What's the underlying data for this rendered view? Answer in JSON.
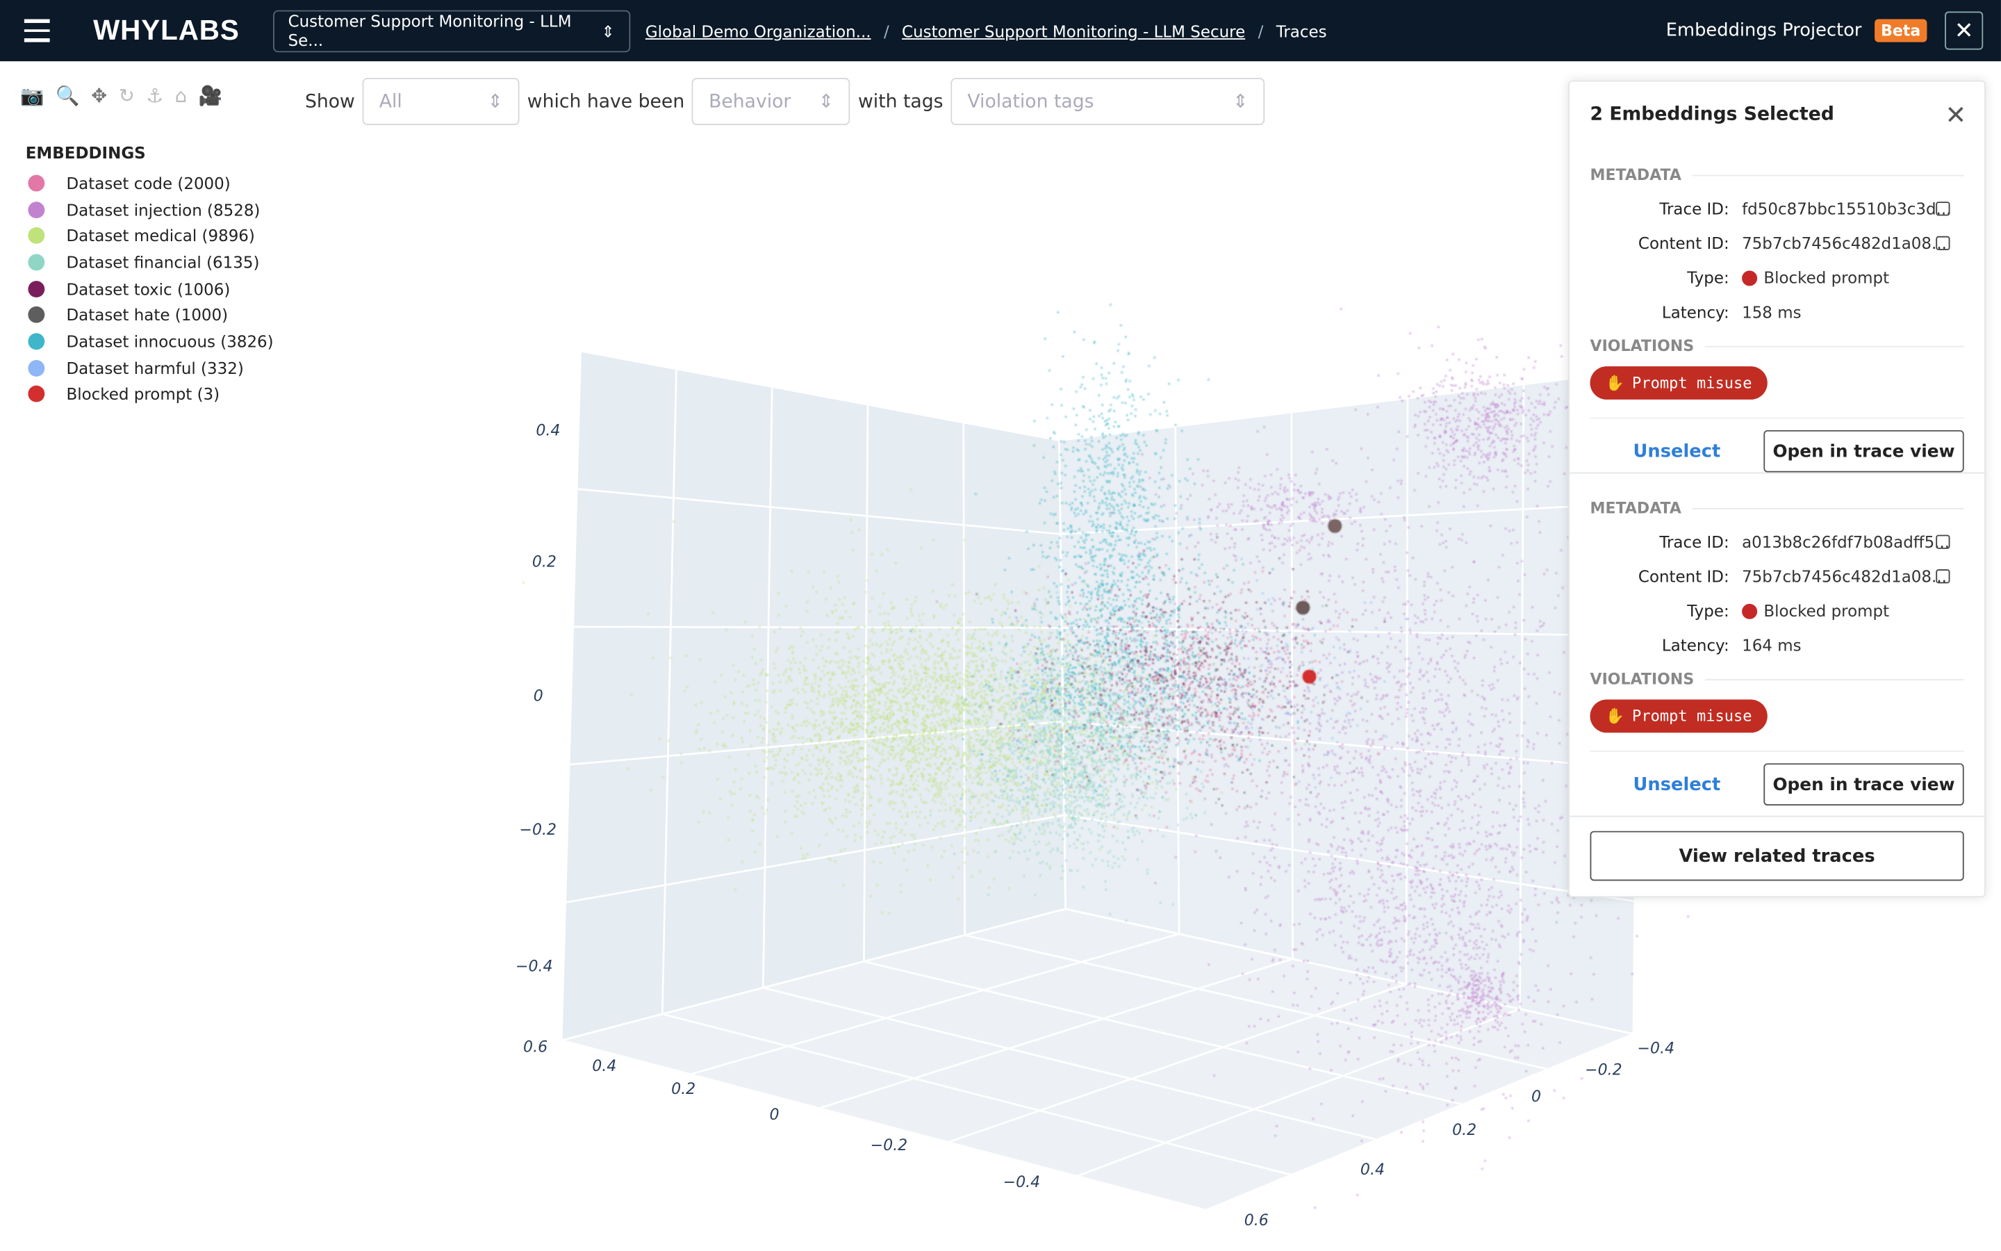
{
  "topbar": {
    "logo": "WHYLABS",
    "model_select": "Customer Support Monitoring - LLM Se...",
    "breadcrumbs": [
      "Global Demo Organization...",
      "Customer Support Monitoring - LLM Secure",
      "Traces"
    ],
    "title": "Embeddings Projector",
    "badge": "Beta"
  },
  "toolbar": {
    "icons": [
      "camera-icon",
      "zoom-icon",
      "pan-icon",
      "orbit-icon",
      "turntable-icon",
      "home-icon",
      "video-camera-icon"
    ]
  },
  "filters": {
    "show_label": "Show",
    "show_value": "All",
    "behavior_label": "which have been",
    "behavior_placeholder": "Behavior",
    "tags_label": "with tags",
    "tags_placeholder": "Violation tags"
  },
  "legend": {
    "title": "EMBEDDINGS",
    "items": [
      {
        "label": "Dataset code (2000)",
        "color": "#e377a5"
      },
      {
        "label": "Dataset injection (8528)",
        "color": "#c182d0"
      },
      {
        "label": "Dataset medical (9896)",
        "color": "#bfe27a"
      },
      {
        "label": "Dataset financial (6135)",
        "color": "#8fd6c6"
      },
      {
        "label": "Dataset toxic (1006)",
        "color": "#7a1f5c"
      },
      {
        "label": "Dataset hate (1000)",
        "color": "#5e5e5e"
      },
      {
        "label": "Dataset innocuous (3826)",
        "color": "#3fb6c9"
      },
      {
        "label": "Dataset harmful (332)",
        "color": "#8fb6f5"
      },
      {
        "label": "Blocked prompt (3)",
        "color": "#d32f2f"
      }
    ]
  },
  "chart_data": {
    "type": "scatter",
    "dimensions": 3,
    "z_ticks": [
      "0.4",
      "0.2",
      "0",
      "−0.2",
      "−0.4"
    ],
    "x_ticks": [
      "0.6",
      "0.4",
      "0.2",
      "0",
      "−0.2",
      "−0.4"
    ],
    "y_ticks": [
      "−0.4",
      "−0.2",
      "0",
      "0.2",
      "0.4",
      "0.6"
    ],
    "grid": true,
    "legend": "top-left"
  },
  "panel": {
    "title": "2 Embeddings Selected",
    "selections": [
      {
        "metadata_title": "METADATA",
        "trace_id_label": "Trace ID:",
        "trace_id": "fd50c87bbc15510b3c3d...",
        "content_id_label": "Content ID:",
        "content_id": "75b7cb7456c482d1a08...",
        "type_label": "Type:",
        "type": "Blocked prompt",
        "latency_label": "Latency:",
        "latency": "158 ms",
        "violations_title": "VIOLATIONS",
        "violation": "Prompt misuse",
        "unselect": "Unselect",
        "open": "Open in trace view"
      },
      {
        "metadata_title": "METADATA",
        "trace_id_label": "Trace ID:",
        "trace_id": "a013b8c26fdf7b08adff5...",
        "content_id_label": "Content ID:",
        "content_id": "75b7cb7456c482d1a08...",
        "type_label": "Type:",
        "type": "Blocked prompt",
        "latency_label": "Latency:",
        "latency": "164 ms",
        "violations_title": "VIOLATIONS",
        "violation": "Prompt misuse",
        "unselect": "Unselect",
        "open": "Open in trace view"
      }
    ],
    "view_related": "View related traces"
  }
}
